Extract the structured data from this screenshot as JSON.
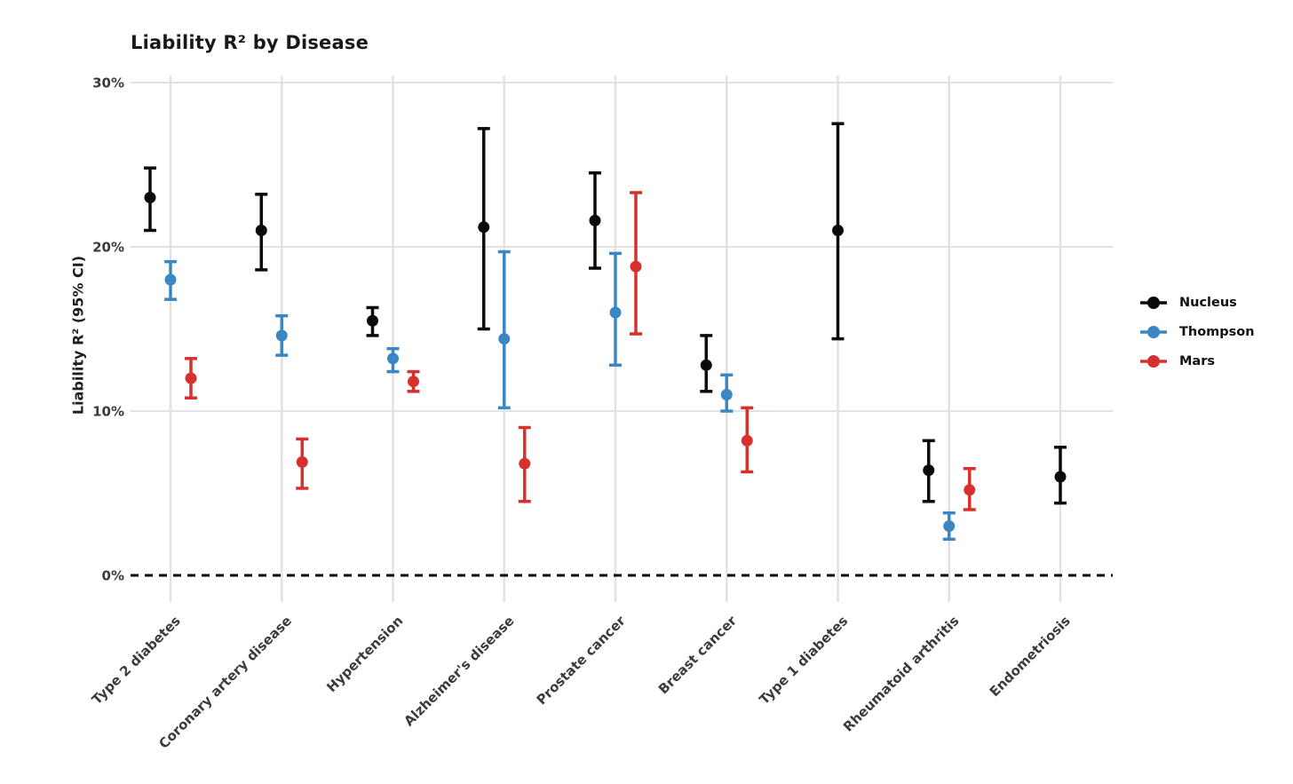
{
  "page": {
    "background": "#ffffff"
  },
  "chart_data": {
    "type": "dot-error",
    "title": "Liability R² by Disease",
    "ylabel": "Liability R² (95% CI)",
    "xlabel": "",
    "grid": true,
    "legend_position": "right",
    "y_axis": {
      "unit": "%",
      "ylim": [
        0,
        31.5
      ],
      "tick_labels": [
        "30%",
        "20%",
        "10%",
        "0%"
      ],
      "tick_values": [
        30,
        20,
        10,
        0
      ],
      "zero_line_style": "dashed"
    },
    "categories": [
      "Type 2 diabetes",
      "Coronary artery disease",
      "Hypertension",
      "Alzheimer's disease",
      "Prostate cancer",
      "Breast cancer",
      "Type 1 diabetes",
      "Rheumatoid arthritis",
      "Endometriosis"
    ],
    "series": [
      {
        "name": "Nucleus",
        "color": "#0a0a0a",
        "points": [
          {
            "value": 23.0,
            "lo": 21.0,
            "hi": 24.8
          },
          {
            "value": 21.0,
            "lo": 18.6,
            "hi": 23.2
          },
          {
            "value": 15.5,
            "lo": 14.6,
            "hi": 16.3
          },
          {
            "value": 21.2,
            "lo": 15.0,
            "hi": 27.2
          },
          {
            "value": 21.6,
            "lo": 18.7,
            "hi": 24.5
          },
          {
            "value": 12.8,
            "lo": 11.2,
            "hi": 14.6
          },
          {
            "value": 21.0,
            "lo": 14.4,
            "hi": 27.5
          },
          {
            "value": 6.4,
            "lo": 4.5,
            "hi": 8.2
          },
          {
            "value": 6.0,
            "lo": 4.4,
            "hi": 7.8
          }
        ]
      },
      {
        "name": "Thompson",
        "color": "#3a87c3",
        "points": [
          {
            "value": 18.0,
            "lo": 16.8,
            "hi": 19.1
          },
          {
            "value": 14.6,
            "lo": 13.4,
            "hi": 15.8
          },
          {
            "value": 13.2,
            "lo": 12.4,
            "hi": 13.8
          },
          {
            "value": 14.4,
            "lo": 10.2,
            "hi": 19.7
          },
          {
            "value": 16.0,
            "lo": 12.8,
            "hi": 19.6
          },
          {
            "value": 11.0,
            "lo": 10.0,
            "hi": 12.2
          },
          null,
          {
            "value": 3.0,
            "lo": 2.2,
            "hi": 3.8
          },
          null
        ]
      },
      {
        "name": "Mars",
        "color": "#d7312e",
        "points": [
          {
            "value": 12.0,
            "lo": 10.8,
            "hi": 13.2
          },
          {
            "value": 6.9,
            "lo": 5.3,
            "hi": 8.3
          },
          {
            "value": 11.8,
            "lo": 11.2,
            "hi": 12.4
          },
          {
            "value": 6.8,
            "lo": 4.5,
            "hi": 9.0
          },
          {
            "value": 18.8,
            "lo": 14.7,
            "hi": 23.3
          },
          {
            "value": 8.2,
            "lo": 6.3,
            "hi": 10.2
          },
          null,
          {
            "value": 5.2,
            "lo": 4.0,
            "hi": 6.5
          },
          null
        ]
      }
    ]
  },
  "style": {
    "grid_color": "#e2e2e2",
    "tick_label_color": "#3b3b3b",
    "zero_line_color": "#000000"
  }
}
